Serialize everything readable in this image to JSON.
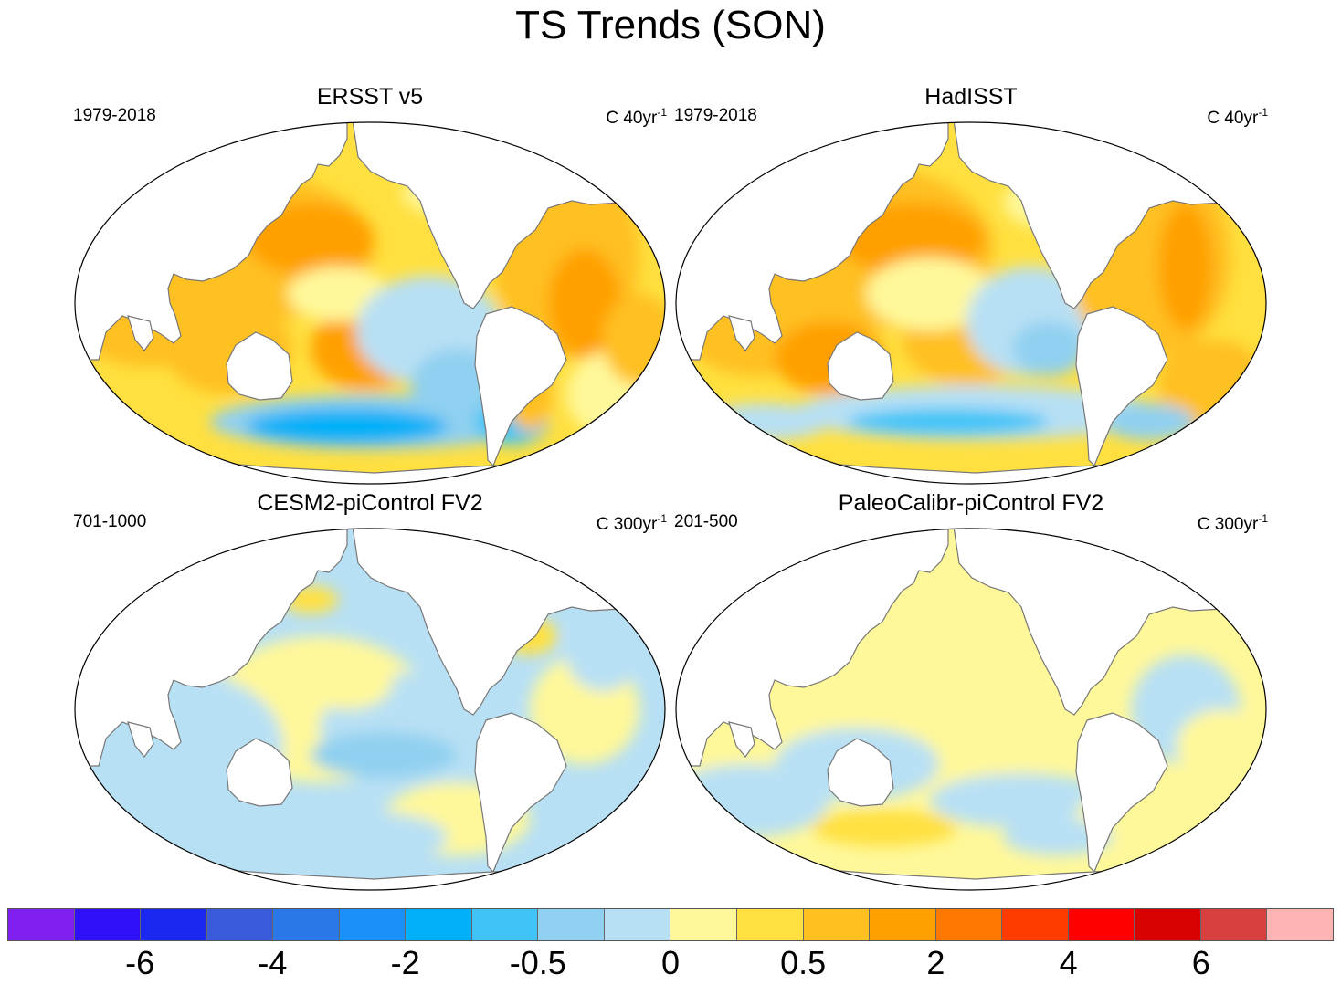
{
  "title": "TS Trends (SON)",
  "panels": [
    {
      "name": "ERSST v5",
      "period": "1979-2018",
      "units": "C 40yr",
      "units_exp": "-1",
      "style": "obs1"
    },
    {
      "name": "HadISST",
      "period": "1979-2018",
      "units": "C 40yr",
      "units_exp": "-1",
      "style": "obs2"
    },
    {
      "name": "CESM2-piControl FV2",
      "period": "701-1000",
      "units": "C 300yr",
      "units_exp": "-1",
      "style": "model1"
    },
    {
      "name": "PaleoCalibr-piControl FV2",
      "period": "201-500",
      "units": "C 300yr",
      "units_exp": "-1",
      "style": "model2"
    }
  ],
  "colorbar": {
    "colors": [
      "#8020f0",
      "#3010f8",
      "#1a28f0",
      "#3a5adc",
      "#2a78e8",
      "#1a90f8",
      "#00b0f8",
      "#40c4f8",
      "#90d0f0",
      "#b8e0f4",
      "#fff89a",
      "#ffe040",
      "#ffc020",
      "#ffa000",
      "#ff7800",
      "#ff3c00",
      "#ff0000",
      "#d80000",
      "#d84040",
      "#ffb4b4"
    ],
    "labels": [
      "-6",
      "-4",
      "-2",
      "-0.5",
      "0",
      "0.5",
      "2",
      "4",
      "6"
    ]
  }
}
